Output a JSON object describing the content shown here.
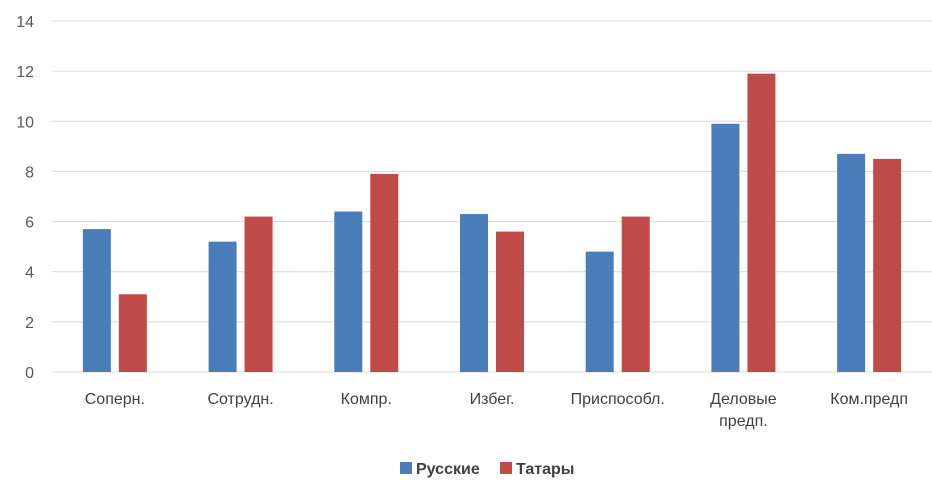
{
  "chart_data": {
    "type": "bar",
    "categories": [
      "Соперн.",
      "Сотрудн.",
      "Компр.",
      "Избег.",
      "Приспособл.",
      "Деловые предп.",
      "Ком.предп"
    ],
    "category_lines": [
      [
        "Соперн."
      ],
      [
        "Сотрудн."
      ],
      [
        "Компр."
      ],
      [
        "Избег."
      ],
      [
        "Приспособл."
      ],
      [
        "Деловые",
        "предп."
      ],
      [
        "Ком.предп"
      ]
    ],
    "series": [
      {
        "name": "Русские",
        "color": "#4a7ebb",
        "values": [
          5.7,
          5.2,
          6.4,
          6.3,
          4.8,
          9.9,
          8.7
        ]
      },
      {
        "name": "Татары",
        "color": "#be4b48",
        "values": [
          3.1,
          6.2,
          7.9,
          5.6,
          6.2,
          11.9,
          8.5
        ]
      }
    ],
    "ylim": [
      0,
      14
    ],
    "yticks": [
      0,
      2,
      4,
      6,
      8,
      10,
      12,
      14
    ],
    "grid": true,
    "legend_position": "bottom",
    "title": "",
    "xlabel": "",
    "ylabel": ""
  }
}
